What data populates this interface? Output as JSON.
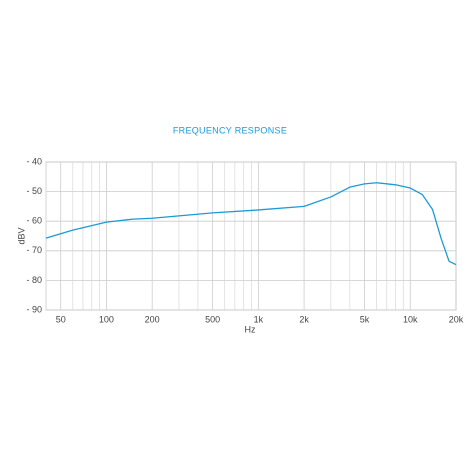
{
  "chart_data": {
    "type": "line",
    "title": "FREQUENCY RESPONSE",
    "xlabel": "Hz",
    "ylabel": "dBV",
    "xscale": "log",
    "xlim": [
      40,
      20000
    ],
    "ylim": [
      -40,
      -90
    ],
    "xticks": [
      50,
      100,
      200,
      500,
      {
        "value": 1000,
        "label": "1k"
      },
      {
        "value": 2000,
        "label": "2k"
      },
      {
        "value": 5000,
        "label": "5k"
      },
      {
        "value": 10000,
        "label": "10k"
      },
      {
        "value": 20000,
        "label": "20k"
      }
    ],
    "xminor_ticks": [
      40,
      60,
      70,
      80,
      90,
      300,
      400,
      600,
      700,
      800,
      900,
      3000,
      4000,
      6000,
      7000,
      8000,
      9000
    ],
    "yticks": [
      {
        "value": -40,
        "label": "- 40"
      },
      {
        "value": -50,
        "label": "- 50"
      },
      {
        "value": -60,
        "label": "- 60"
      },
      {
        "value": -70,
        "label": "- 70"
      },
      {
        "value": -80,
        "label": "- 80"
      },
      {
        "value": -90,
        "label": "- 90"
      }
    ],
    "grid": true,
    "x": [
      40,
      60,
      100,
      150,
      200,
      500,
      1000,
      2000,
      3000,
      4000,
      5000,
      6000,
      8000,
      10000,
      12000,
      14000,
      16000,
      18000,
      20000
    ],
    "series": [
      {
        "name": "dBV",
        "color": "#1a9bd7",
        "values": [
          -65.7,
          -63,
          -60.3,
          -59.3,
          -59,
          -57.2,
          -56.2,
          -55,
          -51.8,
          -48.5,
          -47.4,
          -47,
          -47.7,
          -48.8,
          -51,
          -56,
          -66,
          -73.5,
          -74.7
        ]
      }
    ]
  }
}
